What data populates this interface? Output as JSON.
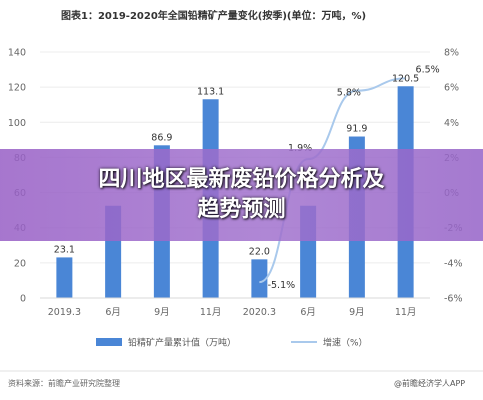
{
  "colors": {
    "bar": "#4a86d6",
    "line": "#a9c9ec",
    "grid": "#ececec",
    "banner": "#9a62c9"
  },
  "header": {
    "title": "图表1：2019-2020年全国铅精矿产量变化(按季)(单位：万吨，%)"
  },
  "overlay": {
    "banner_text": "四川地区最新废铅价格分析及趋势预测"
  },
  "footer": {
    "source": "资料来源：前瞻产业研究院整理",
    "credit": "@前瞻经济学人APP"
  },
  "chart_data": {
    "type": "bar",
    "title": "图表1：2019-2020年全国铅精矿产量变化(按季)(单位：万吨，%)",
    "categories": [
      "2019.3",
      "6月",
      "9月",
      "11月",
      "2020.3",
      "6月",
      "9月",
      "11月"
    ],
    "ylim": [
      0,
      140
    ],
    "y_ticks": [
      "0",
      "20",
      "40",
      "60",
      "80",
      "100",
      "120",
      "140"
    ],
    "y2lim": [
      -6,
      8
    ],
    "y2_ticks": [
      "-6%",
      "-4%",
      "-2%",
      "0%",
      "2%",
      "4%",
      "6%",
      "8%"
    ],
    "grid": true,
    "legend_position": "bottom",
    "series": [
      {
        "name": "铅精矿产量累计值（万吨）",
        "type": "bar",
        "axis": "left",
        "values": [
          23.1,
          52.5,
          86.9,
          113.1,
          22.0,
          52.5,
          91.9,
          120.5
        ],
        "labels": [
          "23.1",
          "",
          "86.9",
          "113.1",
          "22.0",
          "",
          "91.9",
          "120.5"
        ]
      },
      {
        "name": "增速（%）",
        "type": "line",
        "axis": "right",
        "values": [
          null,
          null,
          null,
          null,
          -5.1,
          1.9,
          5.8,
          6.5
        ],
        "labels": [
          "",
          "",
          "",
          "",
          "-5.1%",
          "1.9%",
          "5.8%",
          "6.5%"
        ]
      }
    ]
  }
}
